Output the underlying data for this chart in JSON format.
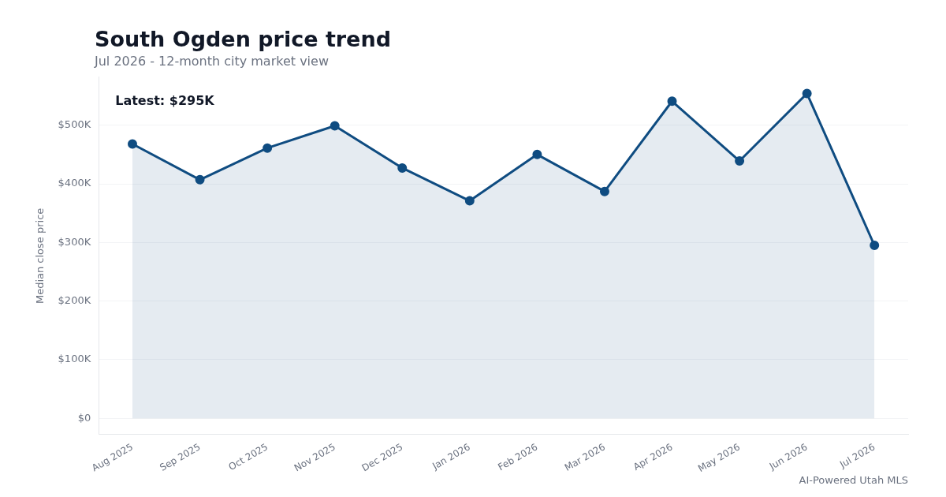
{
  "chart_data": {
    "type": "area",
    "title": "South Ogden price trend",
    "subtitle": "Jul 2026 - 12-month city market view",
    "ylabel": "Median close price",
    "categories": [
      "Aug 2025",
      "Sep 2025",
      "Oct 2025",
      "Nov 2025",
      "Dec 2025",
      "Jan 2026",
      "Feb 2026",
      "Mar 2026",
      "Apr 2026",
      "May 2026",
      "Jun 2026",
      "Jul 2026"
    ],
    "series": [
      {
        "color": "#0f4c81",
        "values": [
          468000,
          407000,
          461000,
          499000,
          427000,
          371000,
          450000,
          387000,
          541000,
          439000,
          554000,
          295000
        ]
      }
    ],
    "ylim": [
      -28000,
      582000
    ],
    "yticks": [
      {
        "value": 0,
        "label": "$0"
      },
      {
        "value": 100000,
        "label": "$100K"
      },
      {
        "value": 200000,
        "label": "$200K"
      },
      {
        "value": 300000,
        "label": "$300K"
      },
      {
        "value": 400000,
        "label": "$400K"
      },
      {
        "value": 500000,
        "label": "$500K"
      }
    ],
    "grid": "y",
    "legend": false,
    "marker": "circle",
    "line_style": "solid",
    "annotations": [
      "Latest: $295K",
      "AI-Powered Utah MLS"
    ]
  }
}
